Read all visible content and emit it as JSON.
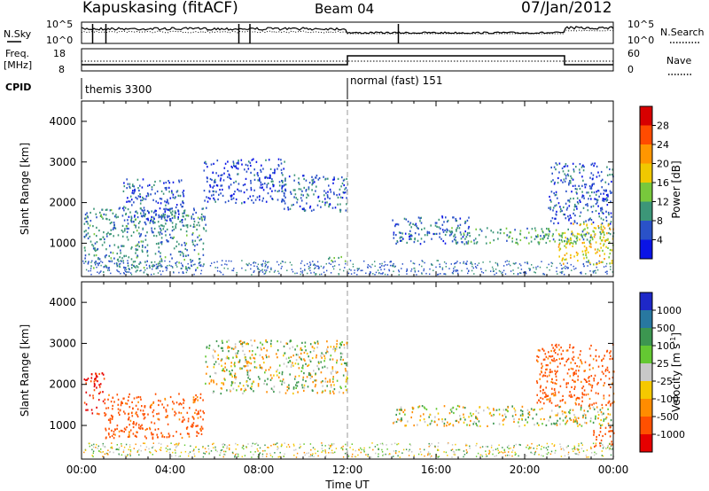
{
  "header": {
    "station": "Kapuskasing (fitACF)",
    "beam": "Beam 04",
    "date": "07/Jan/2012"
  },
  "top_panels": {
    "nsky_label": "N.Sky",
    "nsky_ticks": [
      "10^5",
      "10^0"
    ],
    "nsearch_label": "N.Search",
    "nsearch_ticks": [
      "10^5",
      "10^0"
    ],
    "freq_label_1": "Freq.",
    "freq_label_2": "[MHz]",
    "freq_ticks": [
      "18",
      "8"
    ],
    "nave_label": "Nave",
    "nave_ticks": [
      "60",
      "0"
    ],
    "cpid_label": "CPID",
    "cpid_segments": [
      "themis 3300",
      "normal (fast) 151"
    ]
  },
  "chart_data": [
    {
      "type": "heatmap",
      "panel": "power",
      "xlabel": "",
      "ylabel": "Slant Range [km]",
      "x_range_hours_ut": [
        0,
        24
      ],
      "ylim": [
        180,
        4500
      ],
      "y_ticks": [
        "4000",
        "3000",
        "2000",
        "1000"
      ],
      "colorbar": {
        "label": "Power [dB]",
        "ticks": [
          "28",
          "24",
          "20",
          "16",
          "12",
          "8",
          "4"
        ],
        "colors": [
          "#d70000",
          "#ff4b00",
          "#ff9600",
          "#f0c800",
          "#78c83c",
          "#3c9678",
          "#2a52c8",
          "#0a14e6"
        ]
      },
      "echo_regions": [
        {
          "t0": 0.1,
          "t1": 5.6,
          "r0": 400,
          "r1": 1900,
          "level": 9
        },
        {
          "t0": 1.8,
          "t1": 4.6,
          "r0": 1500,
          "r1": 2600,
          "level": 6
        },
        {
          "t0": 5.5,
          "t1": 9.2,
          "r0": 2000,
          "r1": 3100,
          "level": 5
        },
        {
          "t0": 9.0,
          "t1": 12.0,
          "r0": 1800,
          "r1": 2700,
          "level": 7
        },
        {
          "t0": 11.0,
          "t1": 12.0,
          "r0": 550,
          "r1": 700,
          "level": 12
        },
        {
          "t0": 14.0,
          "t1": 17.5,
          "r0": 1000,
          "r1": 1700,
          "level": 7
        },
        {
          "t0": 16.5,
          "t1": 24.0,
          "r0": 1000,
          "r1": 1400,
          "level": 11
        },
        {
          "t0": 21.5,
          "t1": 24.0,
          "r0": 500,
          "r1": 1500,
          "level": 18
        },
        {
          "t0": 21.0,
          "t1": 24.0,
          "r0": 1500,
          "r1": 3000,
          "level": 6
        }
      ]
    },
    {
      "type": "heatmap",
      "panel": "velocity",
      "xlabel": "Time UT",
      "ylabel": "Slant Range [km]",
      "x_range_hours_ut": [
        0,
        24
      ],
      "ylim": [
        180,
        4500
      ],
      "x_ticks": [
        "00:00",
        "04:00",
        "08:00",
        "12:00",
        "16:00",
        "20:00",
        "00:00"
      ],
      "y_ticks": [
        "4000",
        "3000",
        "2000",
        "1000"
      ],
      "colorbar": {
        "label": "Velocity [m s-1]",
        "ticks": [
          "1000",
          "500",
          "100",
          "25",
          "-25",
          "-100",
          "-500",
          "-1000"
        ],
        "colors": [
          "#1e28c8",
          "#2878a0",
          "#3c9650",
          "#64c832",
          "#c8c8c8",
          "#f5c800",
          "#ff8c00",
          "#ff5000",
          "#e60000"
        ]
      },
      "echo_regions": [
        {
          "t0": 0.1,
          "t1": 1.0,
          "r0": 1300,
          "r1": 2300,
          "velocity": -800
        },
        {
          "t0": 1.0,
          "t1": 5.5,
          "r0": 700,
          "r1": 1800,
          "velocity": -400
        },
        {
          "t0": 5.5,
          "t1": 12.0,
          "r0": 1800,
          "r1": 3100,
          "velocity": 0
        },
        {
          "t0": 14.0,
          "t1": 24.0,
          "r0": 1000,
          "r1": 1500,
          "velocity": 0
        },
        {
          "t0": 20.5,
          "t1": 24.0,
          "r0": 1500,
          "r1": 3000,
          "velocity": -400
        },
        {
          "t0": 23.0,
          "t1": 24.0,
          "r0": 500,
          "r1": 1000,
          "velocity": -500
        }
      ]
    }
  ]
}
